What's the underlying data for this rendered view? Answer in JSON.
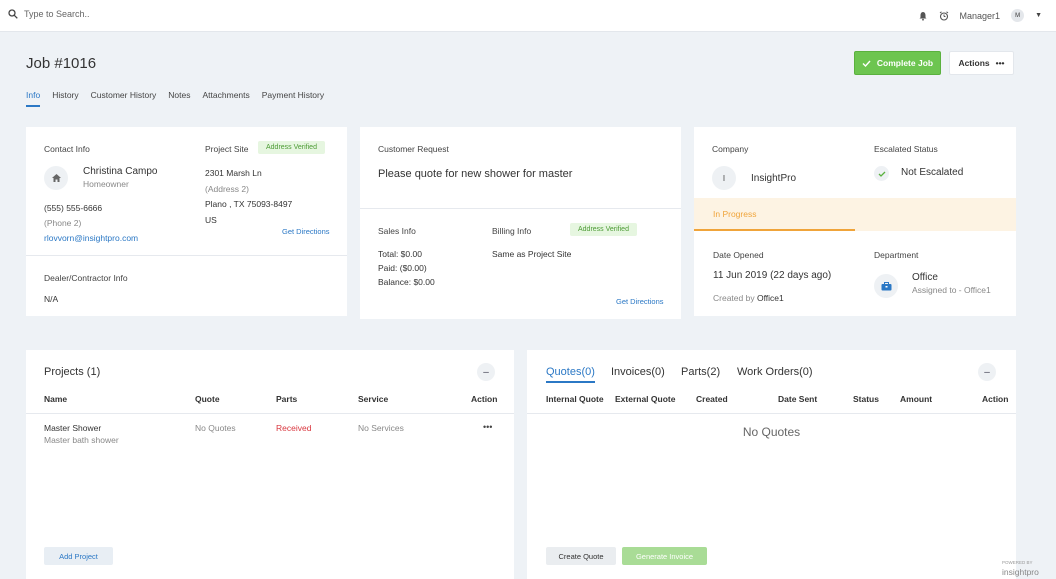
{
  "topbar": {
    "search_placeholder": "Type to Search..",
    "user_name": "Manager1",
    "user_initial": "M"
  },
  "page": {
    "title": "Job #1016",
    "complete_label": "Complete Job",
    "actions_label": "Actions"
  },
  "tabs": [
    {
      "label": "Info"
    },
    {
      "label": "History"
    },
    {
      "label": "Customer History"
    },
    {
      "label": "Notes"
    },
    {
      "label": "Attachments"
    },
    {
      "label": "Payment History"
    }
  ],
  "contact": {
    "heading": "Contact Info",
    "name": "Christina Campo",
    "role": "Homeowner",
    "phone": "(555) 555-6666",
    "phone2": "(Phone 2)",
    "email": "rlovvorn@insightpro.com"
  },
  "project_site": {
    "heading": "Project Site",
    "badge": "Address Verified",
    "line1": "2301 Marsh Ln",
    "line2": "(Address 2)",
    "line3": "Plano , TX 75093-8497",
    "line4": "US",
    "directions": "Get Directions"
  },
  "dealer": {
    "heading": "Dealer/Contractor Info",
    "value": "N/A"
  },
  "request": {
    "heading": "Customer Request",
    "text": "Please quote for new shower for master"
  },
  "sales": {
    "heading": "Sales Info",
    "total": "Total: $0.00",
    "paid": "Paid: ($0.00)",
    "balance": "Balance: $0.00"
  },
  "billing": {
    "heading": "Billing Info",
    "badge": "Address Verified",
    "value": "Same as Project Site",
    "directions": "Get Directions"
  },
  "company": {
    "heading": "Company",
    "initial": "I",
    "name": "InsightPro"
  },
  "escalated": {
    "heading": "Escalated Status",
    "value": "Not Escalated"
  },
  "status": {
    "label": "In Progress",
    "color": "#f0a43a",
    "progress": 0.5
  },
  "date_opened": {
    "heading": "Date Opened",
    "value": "11 Jun 2019 (22 days ago)",
    "created_by_prefix": "Created by",
    "created_by": "Office1"
  },
  "department": {
    "heading": "Department",
    "name": "Office",
    "assigned": "Assigned to - Office1"
  },
  "projects": {
    "heading": "Projects (1)",
    "columns": [
      "Name",
      "Quote",
      "Parts",
      "Service",
      "Action"
    ],
    "rows": [
      {
        "name": "Master Shower",
        "sub": "Master bath shower",
        "quote": "No Quotes",
        "parts": "Received",
        "service": "No Services"
      }
    ],
    "add_label": "Add Project"
  },
  "quotes": {
    "tabs": [
      {
        "label": "Quotes(0)"
      },
      {
        "label": "Invoices(0)"
      },
      {
        "label": "Parts(2)"
      },
      {
        "label": "Work Orders(0)"
      }
    ],
    "columns": [
      "Internal Quote",
      "External Quote",
      "Created",
      "Date Sent",
      "Status",
      "Amount",
      "Action"
    ],
    "empty": "No Quotes",
    "create_label": "Create Quote",
    "generate_label": "Generate Invoice"
  },
  "footer": {
    "powered": "POWERED BY",
    "brand": "insightpro"
  },
  "colors": {
    "accent": "#2b78c5",
    "success": "#6dc550",
    "warning": "#f0a43a",
    "danger": "#d9363e"
  }
}
